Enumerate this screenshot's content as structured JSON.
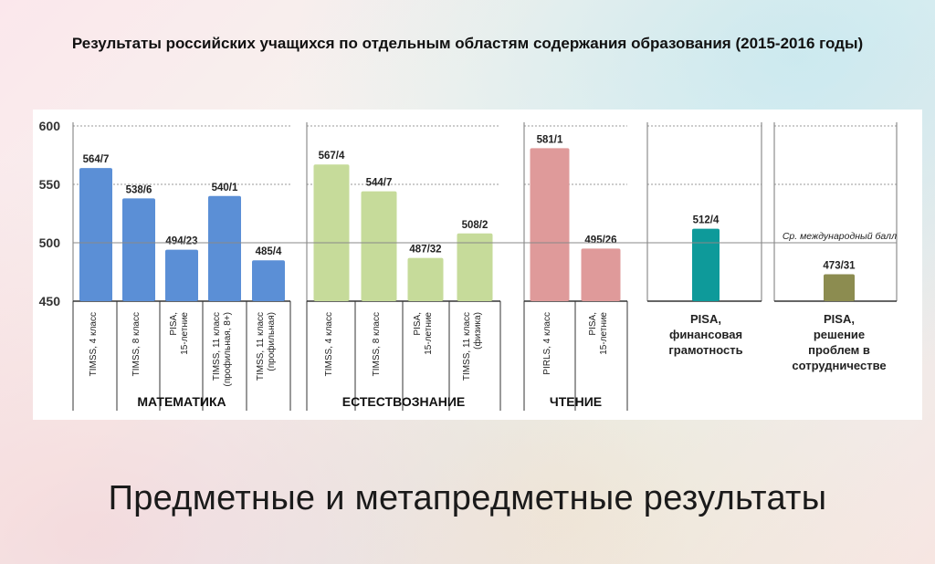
{
  "title": "Результаты российских учащихся  по отдельным областям содержания образования (2015-2016 годы)",
  "subtitle": "Предметные и метапредметные результаты",
  "colors": {
    "math": "#5b8fd6",
    "science": "#c6db9a",
    "reading": "#df9a9a",
    "fin": "#0e9a9a",
    "collab": "#8c8c50"
  },
  "chart_data": {
    "type": "bar",
    "ylim": [
      450,
      600
    ],
    "yticks": [
      "450",
      "500",
      "550",
      "600"
    ],
    "reference": {
      "value": 500,
      "label": "Ср. международный балл"
    },
    "groups": [
      {
        "name": "МАТЕМАТИКА",
        "color_key": "math",
        "bars": [
          {
            "value": 564,
            "label": "564/7",
            "category": [
              "TIMSS, 4 класс"
            ]
          },
          {
            "value": 538,
            "label": "538/6",
            "category": [
              "TIMSS, 8 класс"
            ]
          },
          {
            "value": 494,
            "label": "494/23",
            "category": [
              "PISA,",
              "15-летние"
            ]
          },
          {
            "value": 540,
            "label": "540/1",
            "category": [
              "TIMSS, 11 класс",
              "(профильная, 8+)"
            ]
          },
          {
            "value": 485,
            "label": "485/4",
            "category": [
              "TIMSS, 11 класс",
              "(профильная)"
            ]
          }
        ]
      },
      {
        "name": "ЕСТЕСТВОЗНАНИЕ",
        "color_key": "science",
        "bars": [
          {
            "value": 567,
            "label": "567/4",
            "category": [
              "TIMSS, 4 класс"
            ]
          },
          {
            "value": 544,
            "label": "544/7",
            "category": [
              "TIMSS, 8 класс"
            ]
          },
          {
            "value": 487,
            "label": "487/32",
            "category": [
              "PISA,",
              "15-летние"
            ]
          },
          {
            "value": 508,
            "label": "508/2",
            "category": [
              "TIMSS, 11 класс",
              "(физика)"
            ]
          }
        ]
      },
      {
        "name": "ЧТЕНИЕ",
        "color_key": "reading",
        "bars": [
          {
            "value": 581,
            "label": "581/1",
            "category": [
              "PIRLS, 4 класс"
            ]
          },
          {
            "value": 495,
            "label": "495/26",
            "category": [
              "PISA,",
              "15-летние"
            ]
          }
        ]
      },
      {
        "name": "",
        "color_key": "fin",
        "bars": [
          {
            "value": 512,
            "label": "512/4",
            "category": [
              "PISA,",
              "финансовая",
              "грамотность"
            ]
          }
        ]
      },
      {
        "name": "",
        "color_key": "collab",
        "bars": [
          {
            "value": 473,
            "label": "473/31",
            "category": [
              "PISA,",
              "решение",
              "проблем в",
              "сотрудничестве"
            ]
          }
        ]
      }
    ]
  }
}
